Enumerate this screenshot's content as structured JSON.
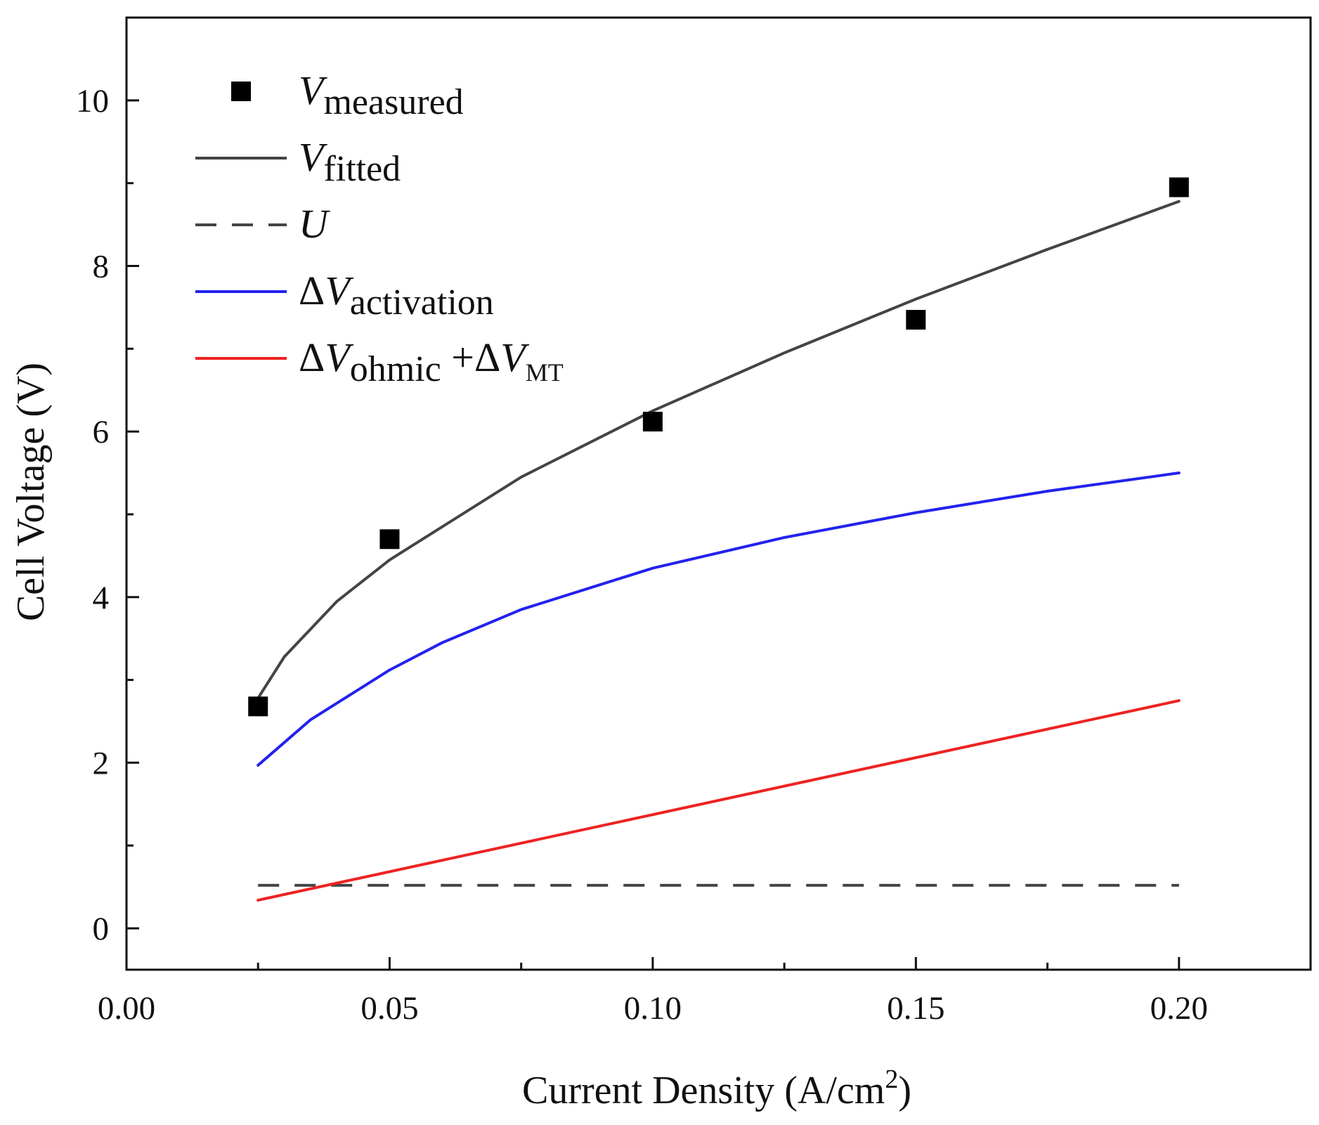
{
  "chart_data": {
    "type": "line",
    "xlabel": "Current Density (A/cm",
    "xlabel_sup": "2",
    "xlabel_end": ")",
    "ylabel": "Cell Voltage (V)",
    "xlim": [
      0.0,
      0.225
    ],
    "ylim": [
      -0.5,
      11.0
    ],
    "xticks": [
      0.0,
      0.05,
      0.1,
      0.15,
      0.2
    ],
    "xtick_labels": [
      "0.00",
      "0.05",
      "0.10",
      "0.15",
      "0.20"
    ],
    "xticks_minor": [
      0.025,
      0.075,
      0.125,
      0.175
    ],
    "yticks": [
      0,
      2,
      4,
      6,
      8,
      10
    ],
    "ytick_labels": [
      "0",
      "2",
      "4",
      "6",
      "8",
      "10"
    ],
    "yticks_minor": [
      1,
      3,
      5,
      7,
      9
    ],
    "grid": false,
    "legend_position": "top-left",
    "series": [
      {
        "key": "measured",
        "kind": "scatter",
        "color": "#000000",
        "legend": {
          "prefix": "",
          "italic": "V",
          "sub": "measured",
          "italic2": "",
          "sub2": "",
          "plus": ""
        },
        "x": [
          0.025,
          0.05,
          0.1,
          0.15,
          0.2
        ],
        "y": [
          2.68,
          4.7,
          6.12,
          7.35,
          8.95
        ]
      },
      {
        "key": "fitted",
        "kind": "line",
        "color": "#444444",
        "dash": "",
        "legend": {
          "prefix": "",
          "italic": "V",
          "sub": "fitted",
          "italic2": "",
          "sub2": "",
          "plus": ""
        },
        "x": [
          0.025,
          0.03,
          0.04,
          0.05,
          0.06,
          0.075,
          0.1,
          0.125,
          0.15,
          0.175,
          0.2
        ],
        "y": [
          2.78,
          3.28,
          3.95,
          4.45,
          4.85,
          5.45,
          6.25,
          6.95,
          7.6,
          8.2,
          8.78
        ]
      },
      {
        "key": "U",
        "kind": "line",
        "color": "#444444",
        "dash": "30,22",
        "legend": {
          "prefix": "",
          "italic": "U",
          "sub": "",
          "italic2": "",
          "sub2": "",
          "plus": ""
        },
        "x": [
          0.025,
          0.2
        ],
        "y": [
          0.52,
          0.52
        ]
      },
      {
        "key": "activation",
        "kind": "line",
        "color": "#2222ee",
        "dash": "",
        "legend": {
          "prefix": "Δ",
          "italic": "V",
          "sub": "activation",
          "italic2": "",
          "sub2": "",
          "plus": ""
        },
        "x": [
          0.025,
          0.035,
          0.045,
          0.05,
          0.06,
          0.075,
          0.1,
          0.125,
          0.15,
          0.175,
          0.2
        ],
        "y": [
          1.97,
          2.52,
          2.92,
          3.12,
          3.45,
          3.85,
          4.35,
          4.72,
          5.02,
          5.28,
          5.5
        ]
      },
      {
        "key": "ohmic_mt",
        "kind": "line",
        "color": "#ee2222",
        "dash": "",
        "legend": {
          "prefix": "Δ",
          "italic": "V",
          "sub": "ohmic",
          "plus": " +Δ",
          "italic2": "V",
          "sub2": "MT"
        },
        "x": [
          0.025,
          0.2
        ],
        "y": [
          0.34,
          2.75
        ]
      }
    ]
  }
}
